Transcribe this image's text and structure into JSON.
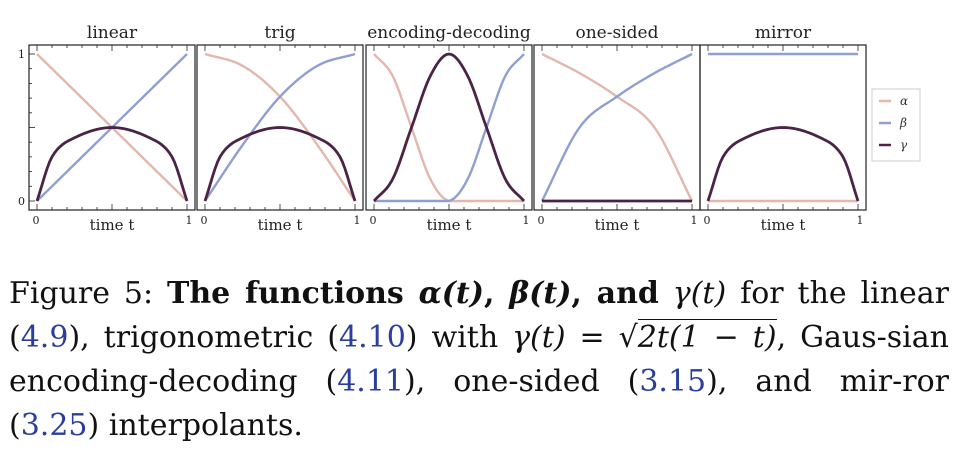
{
  "figure": {
    "panels": [
      {
        "title": "linear",
        "xlabel": "time t",
        "x0": "0",
        "x1": "1"
      },
      {
        "title": "trig",
        "xlabel": "time t",
        "x0": "0",
        "x1": "1"
      },
      {
        "title": "encoding-decoding",
        "xlabel": "time t",
        "x0": "0",
        "x1": "1"
      },
      {
        "title": "one-sided",
        "xlabel": "time t",
        "x0": "0",
        "x1": "1"
      },
      {
        "title": "mirror",
        "xlabel": "time t",
        "x0": "0",
        "x1": "1"
      }
    ],
    "y_tick_top": "1",
    "y_tick_bottom": "0",
    "legend": [
      {
        "label": "α",
        "color": "#e3b7ad"
      },
      {
        "label": "β",
        "color": "#8f9fd0"
      },
      {
        "label": "γ",
        "color": "#4b2346"
      }
    ]
  },
  "chart_data": [
    {
      "type": "line",
      "title": "linear",
      "xlabel": "time t",
      "xlim": [
        0,
        1
      ],
      "ylim": [
        0,
        1
      ],
      "series": [
        {
          "name": "α",
          "x": [
            0,
            0.25,
            0.5,
            0.75,
            1
          ],
          "values": [
            1,
            0.75,
            0.5,
            0.25,
            0
          ]
        },
        {
          "name": "β",
          "x": [
            0,
            0.25,
            0.5,
            0.75,
            1
          ],
          "values": [
            0,
            0.25,
            0.5,
            0.75,
            1
          ]
        },
        {
          "name": "γ",
          "x": [
            0,
            0.1,
            0.25,
            0.5,
            0.75,
            0.9,
            1
          ],
          "values": [
            0,
            0.3,
            0.43,
            0.5,
            0.43,
            0.3,
            0
          ]
        }
      ]
    },
    {
      "type": "line",
      "title": "trig",
      "xlabel": "time t",
      "xlim": [
        0,
        1
      ],
      "ylim": [
        0,
        1
      ],
      "series": [
        {
          "name": "α",
          "x": [
            0,
            0.25,
            0.5,
            0.75,
            1
          ],
          "values": [
            1,
            0.92,
            0.71,
            0.38,
            0
          ]
        },
        {
          "name": "β",
          "x": [
            0,
            0.25,
            0.5,
            0.75,
            1
          ],
          "values": [
            0,
            0.38,
            0.71,
            0.92,
            1
          ]
        },
        {
          "name": "γ",
          "x": [
            0,
            0.1,
            0.25,
            0.5,
            0.75,
            0.9,
            1
          ],
          "values": [
            0,
            0.3,
            0.43,
            0.5,
            0.43,
            0.3,
            0
          ]
        }
      ]
    },
    {
      "type": "line",
      "title": "encoding-decoding",
      "xlabel": "time t",
      "xlim": [
        0,
        1
      ],
      "ylim": [
        0,
        1
      ],
      "series": [
        {
          "name": "α",
          "x": [
            0,
            0.125,
            0.25,
            0.375,
            0.5,
            1
          ],
          "values": [
            1,
            0.85,
            0.5,
            0.15,
            0,
            0
          ]
        },
        {
          "name": "β",
          "x": [
            0,
            0.5,
            0.625,
            0.75,
            0.875,
            1
          ],
          "values": [
            0,
            0,
            0.15,
            0.5,
            0.85,
            1
          ]
        },
        {
          "name": "γ",
          "x": [
            0,
            0.125,
            0.25,
            0.375,
            0.5,
            0.625,
            0.75,
            0.875,
            1
          ],
          "values": [
            0,
            0.15,
            0.5,
            0.85,
            1,
            0.85,
            0.5,
            0.15,
            0
          ]
        }
      ]
    },
    {
      "type": "line",
      "title": "one-sided",
      "xlabel": "time t",
      "xlim": [
        0,
        1
      ],
      "ylim": [
        0,
        1
      ],
      "series": [
        {
          "name": "α",
          "x": [
            0,
            0.25,
            0.5,
            0.75,
            1
          ],
          "values": [
            1,
            0.87,
            0.71,
            0.5,
            0
          ]
        },
        {
          "name": "β",
          "x": [
            0,
            0.25,
            0.5,
            0.75,
            1
          ],
          "values": [
            0,
            0.5,
            0.71,
            0.87,
            1
          ]
        },
        {
          "name": "γ",
          "x": [
            0,
            1
          ],
          "values": [
            0,
            0
          ]
        }
      ]
    },
    {
      "type": "line",
      "title": "mirror",
      "xlabel": "time t",
      "xlim": [
        0,
        1
      ],
      "ylim": [
        0,
        1
      ],
      "series": [
        {
          "name": "α",
          "x": [
            0,
            1
          ],
          "values": [
            0,
            0
          ]
        },
        {
          "name": "β",
          "x": [
            0,
            1
          ],
          "values": [
            1,
            1
          ]
        },
        {
          "name": "γ",
          "x": [
            0,
            0.1,
            0.25,
            0.5,
            0.75,
            0.9,
            1
          ],
          "values": [
            0,
            0.3,
            0.43,
            0.5,
            0.43,
            0.3,
            0
          ]
        }
      ]
    }
  ],
  "caption": {
    "label": "Figure 5:",
    "bold_text": "The functions",
    "alpha": "α(t)",
    "beta": "β(t)",
    "and_bold": "and",
    "gamma": "γ(t)",
    "text1": "for the linear",
    "ref1": "4.9",
    "text2": ", trigonometric",
    "ref2": "4.10",
    "text3": "with",
    "gamma2": "γ(t)",
    "eq": "=",
    "sqrt_arg": "2t(1 − t)",
    "text4": ", Gaus-sian encoding-decoding",
    "ref3": "4.11",
    "text5": ", one-sided",
    "ref4": "3.15",
    "text6": ", and mir-ror",
    "ref5": "3.25",
    "text7": "interpolants."
  }
}
